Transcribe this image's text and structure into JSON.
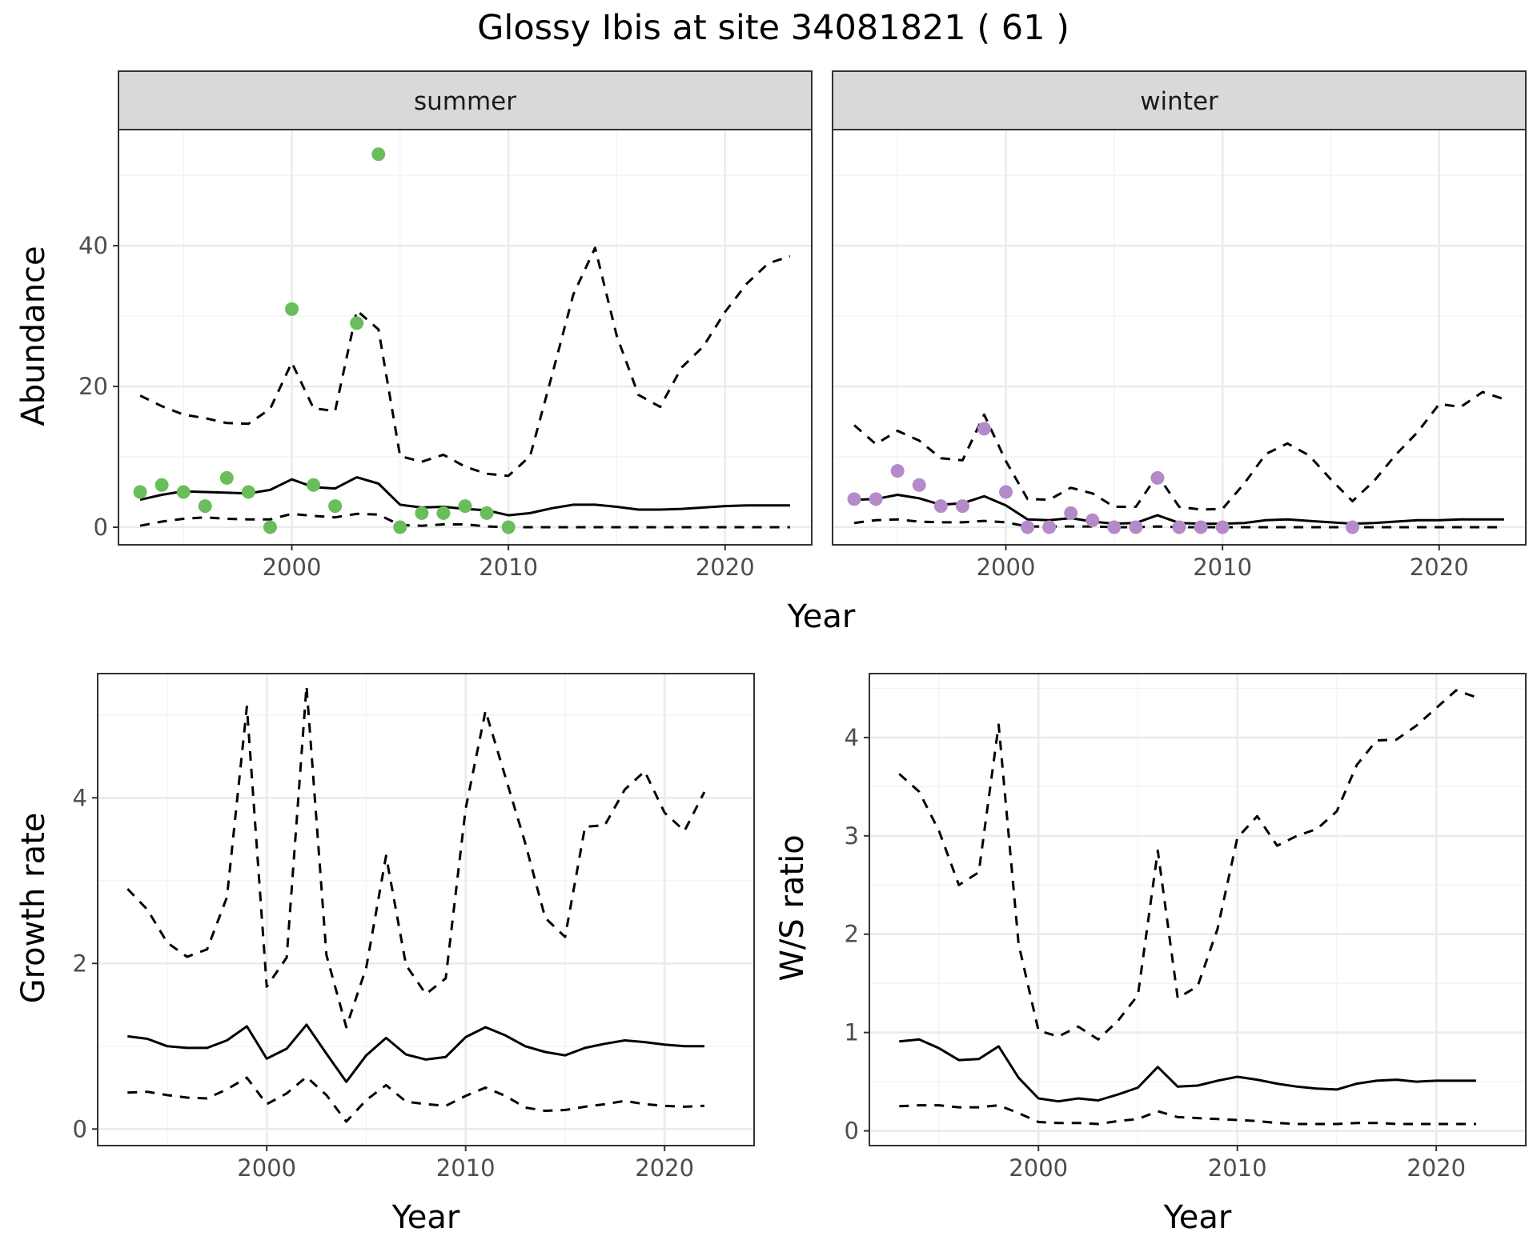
{
  "title": "Glossy Ibis at site 34081821 ( 61 )",
  "colors": {
    "summer_points": "#6abd5b",
    "winter_points": "#b48ac9",
    "lines": "#000000",
    "strip_bg": "#d9d9d9",
    "grid": "#ebebeb"
  },
  "chart_data": [
    {
      "type": "line",
      "panel": "summer",
      "strip_label": "summer",
      "xlabel": "Year",
      "ylabel": "Abundance",
      "xlim": [
        1992,
        2024
      ],
      "ylim": [
        -2.5,
        56.5
      ],
      "x_ticks": [
        2000,
        2010,
        2020
      ],
      "y_ticks": [
        0,
        20,
        40
      ],
      "grid": true,
      "series": [
        {
          "role": "estimate",
          "style": "solid",
          "x": [
            1993,
            1994,
            1995,
            1996,
            1997,
            1998,
            1999,
            2000,
            2001,
            2002,
            2003,
            2004,
            2005,
            2006,
            2007,
            2008,
            2009,
            2010,
            2011,
            2012,
            2013,
            2014,
            2015,
            2016,
            2017,
            2018,
            2019,
            2020,
            2021,
            2022,
            2023
          ],
          "y": [
            3.9,
            4.6,
            5.1,
            5.0,
            4.9,
            4.8,
            5.3,
            6.8,
            5.7,
            5.5,
            7.1,
            6.2,
            3.2,
            2.8,
            2.9,
            2.6,
            2.4,
            1.7,
            2.0,
            2.7,
            3.2,
            3.2,
            2.9,
            2.5,
            2.5,
            2.6,
            2.8,
            3.0,
            3.1,
            3.1,
            3.1
          ]
        },
        {
          "role": "upper",
          "style": "dashed",
          "x": [
            1993,
            1994,
            1995,
            1996,
            1997,
            1998,
            1999,
            2000,
            2001,
            2002,
            2003,
            2004,
            2005,
            2006,
            2007,
            2008,
            2009,
            2010,
            2011,
            2012,
            2013,
            2014,
            2015,
            2016,
            2017,
            2018,
            2019,
            2020,
            2021,
            2022,
            2023
          ],
          "y": [
            18.7,
            17.2,
            16.0,
            15.5,
            14.8,
            14.7,
            16.8,
            23.4,
            16.9,
            16.5,
            30.8,
            28.1,
            10.1,
            9.3,
            10.3,
            8.6,
            7.6,
            7.3,
            10.1,
            21.5,
            33.1,
            39.7,
            27.2,
            18.8,
            17.1,
            22.7,
            25.7,
            30.6,
            34.6,
            37.5,
            38.5
          ]
        },
        {
          "role": "lower",
          "style": "dashed",
          "x": [
            1993,
            1994,
            1995,
            1996,
            1997,
            1998,
            1999,
            2000,
            2001,
            2002,
            2003,
            2004,
            2005,
            2006,
            2007,
            2008,
            2009,
            2010,
            2011,
            2012,
            2013,
            2014,
            2015,
            2016,
            2017,
            2018,
            2019,
            2020,
            2021,
            2022,
            2023
          ],
          "y": [
            0.2,
            0.8,
            1.2,
            1.4,
            1.2,
            1.1,
            1.1,
            1.9,
            1.6,
            1.4,
            1.9,
            1.8,
            0.3,
            0.2,
            0.4,
            0.4,
            0.1,
            0.0,
            0.0,
            0.0,
            0.0,
            0.0,
            0.0,
            0.0,
            0.0,
            0.0,
            0.0,
            0.0,
            0.0,
            0.0,
            0.0
          ]
        }
      ],
      "points": {
        "x": [
          1993,
          1994,
          1995,
          1996,
          1997,
          1998,
          1999,
          2000,
          2001,
          2002,
          2003,
          2004,
          2005,
          2006,
          2007,
          2008,
          2009,
          2010
        ],
        "y": [
          5,
          6,
          5,
          3,
          7,
          5,
          0,
          31,
          6,
          3,
          29,
          53,
          0,
          2,
          2,
          3,
          2,
          0
        ]
      }
    },
    {
      "type": "line",
      "panel": "winter",
      "strip_label": "winter",
      "xlabel": "Year",
      "ylabel": "Abundance",
      "xlim": [
        1992,
        2024
      ],
      "ylim": [
        -2.5,
        56.5
      ],
      "x_ticks": [
        2000,
        2010,
        2020
      ],
      "y_ticks": [
        0,
        20,
        40
      ],
      "grid": true,
      "series": [
        {
          "role": "estimate",
          "style": "solid",
          "x": [
            1993,
            1994,
            1995,
            1996,
            1997,
            1998,
            1999,
            2000,
            2001,
            2002,
            2003,
            2004,
            2005,
            2006,
            2007,
            2008,
            2009,
            2010,
            2011,
            2012,
            2013,
            2014,
            2015,
            2016,
            2017,
            2018,
            2019,
            2020,
            2021,
            2022,
            2023
          ],
          "y": [
            3.9,
            4.0,
            4.6,
            4.1,
            3.2,
            3.4,
            4.4,
            3.1,
            1.1,
            1.0,
            1.3,
            0.8,
            0.5,
            0.6,
            1.7,
            0.6,
            0.5,
            0.5,
            0.6,
            1.0,
            1.1,
            0.9,
            0.7,
            0.5,
            0.6,
            0.8,
            1.0,
            1.0,
            1.1,
            1.1,
            1.1
          ]
        },
        {
          "role": "upper",
          "style": "dashed",
          "x": [
            1993,
            1994,
            1995,
            1996,
            1997,
            1998,
            1999,
            2000,
            2001,
            2002,
            2003,
            2004,
            2005,
            2006,
            2007,
            2008,
            2009,
            2010,
            2011,
            2012,
            2013,
            2014,
            2015,
            2016,
            2017,
            2018,
            2019,
            2020,
            2021,
            2022,
            2023
          ],
          "y": [
            14.5,
            11.8,
            13.7,
            12.3,
            9.8,
            9.5,
            16.0,
            9.4,
            4.0,
            3.9,
            5.6,
            4.8,
            2.9,
            2.9,
            7.4,
            2.9,
            2.5,
            2.6,
            6.2,
            10.4,
            11.9,
            10.2,
            6.8,
            3.7,
            6.6,
            10.3,
            13.5,
            17.5,
            17.1,
            19.2,
            18.2
          ]
        },
        {
          "role": "lower",
          "style": "dashed",
          "x": [
            1993,
            1994,
            1995,
            1996,
            1997,
            1998,
            1999,
            2000,
            2001,
            2002,
            2003,
            2004,
            2005,
            2006,
            2007,
            2008,
            2009,
            2010,
            2011,
            2012,
            2013,
            2014,
            2015,
            2016,
            2017,
            2018,
            2019,
            2020,
            2021,
            2022,
            2023
          ],
          "y": [
            0.6,
            1.0,
            1.1,
            0.8,
            0.7,
            0.7,
            0.9,
            0.7,
            0.1,
            0.1,
            0.1,
            0.1,
            0.0,
            0.0,
            0.1,
            0.0,
            0.0,
            0.0,
            0.0,
            0.0,
            0.0,
            0.0,
            0.0,
            0.0,
            0.0,
            0.0,
            0.0,
            0.0,
            0.0,
            0.0,
            0.0
          ]
        }
      ],
      "points": {
        "x": [
          1993,
          1994,
          1995,
          1996,
          1997,
          1998,
          1999,
          2000,
          2001,
          2002,
          2003,
          2004,
          2005,
          2006,
          2007,
          2008,
          2009,
          2010,
          2016
        ],
        "y": [
          4,
          4,
          8,
          6,
          3,
          3,
          14,
          5,
          0,
          0,
          2,
          1,
          0,
          0,
          7,
          0,
          0,
          0,
          0
        ]
      }
    },
    {
      "type": "line",
      "panel": "growth",
      "xlabel": "Year",
      "ylabel": "Growth rate",
      "xlim": [
        1991.5,
        2024.5
      ],
      "ylim": [
        -0.2,
        5.5
      ],
      "x_ticks": [
        2000,
        2010,
        2020
      ],
      "y_ticks": [
        0,
        2,
        4
      ],
      "grid": true,
      "series": [
        {
          "role": "estimate",
          "style": "solid",
          "x": [
            1993,
            1994,
            1995,
            1996,
            1997,
            1998,
            1999,
            2000,
            2001,
            2002,
            2003,
            2004,
            2005,
            2006,
            2007,
            2008,
            2009,
            2010,
            2011,
            2012,
            2013,
            2014,
            2015,
            2016,
            2017,
            2018,
            2019,
            2020,
            2021,
            2022
          ],
          "y": [
            1.12,
            1.09,
            1.0,
            0.98,
            0.98,
            1.07,
            1.24,
            0.85,
            0.97,
            1.26,
            0.91,
            0.57,
            0.89,
            1.1,
            0.9,
            0.84,
            0.87,
            1.11,
            1.23,
            1.13,
            1.0,
            0.93,
            0.89,
            0.98,
            1.03,
            1.07,
            1.05,
            1.02,
            1.0,
            1.0
          ]
        },
        {
          "role": "upper",
          "style": "dashed",
          "x": [
            1993,
            1994,
            1995,
            1996,
            1997,
            1998,
            1999,
            2000,
            2001,
            2002,
            2003,
            2004,
            2005,
            2006,
            2007,
            2008,
            2009,
            2010,
            2011,
            2012,
            2013,
            2014,
            2015,
            2016,
            2017,
            2018,
            2019,
            2020,
            2021,
            2022
          ],
          "y": [
            2.9,
            2.65,
            2.25,
            2.08,
            2.17,
            2.8,
            5.1,
            1.72,
            2.07,
            5.35,
            2.1,
            1.23,
            1.95,
            3.3,
            1.98,
            1.63,
            1.82,
            3.87,
            5.05,
            4.25,
            3.45,
            2.55,
            2.32,
            3.65,
            3.67,
            4.1,
            4.32,
            3.82,
            3.6,
            4.07
          ]
        },
        {
          "role": "lower",
          "style": "dashed",
          "x": [
            1993,
            1994,
            1995,
            1996,
            1997,
            1998,
            1999,
            2000,
            2001,
            2002,
            2003,
            2004,
            2005,
            2006,
            2007,
            2008,
            2009,
            2010,
            2011,
            2012,
            2013,
            2014,
            2015,
            2016,
            2017,
            2018,
            2019,
            2020,
            2021,
            2022
          ],
          "y": [
            0.44,
            0.45,
            0.41,
            0.38,
            0.37,
            0.48,
            0.62,
            0.3,
            0.43,
            0.63,
            0.41,
            0.09,
            0.35,
            0.53,
            0.33,
            0.3,
            0.28,
            0.4,
            0.5,
            0.4,
            0.26,
            0.22,
            0.23,
            0.27,
            0.3,
            0.34,
            0.3,
            0.28,
            0.27,
            0.28
          ]
        }
      ]
    },
    {
      "type": "line",
      "panel": "ratio",
      "xlabel": "Year",
      "ylabel": "W/S ratio",
      "xlim": [
        1991.5,
        2024.5
      ],
      "ylim": [
        -0.15,
        4.65
      ],
      "x_ticks": [
        2000,
        2010,
        2020
      ],
      "y_ticks": [
        0,
        1,
        2,
        3,
        4
      ],
      "grid": true,
      "series": [
        {
          "role": "estimate",
          "style": "solid",
          "x": [
            1993,
            1994,
            1995,
            1996,
            1997,
            1998,
            1999,
            2000,
            2001,
            2002,
            2003,
            2004,
            2005,
            2006,
            2007,
            2008,
            2009,
            2010,
            2011,
            2012,
            2013,
            2014,
            2015,
            2016,
            2017,
            2018,
            2019,
            2020,
            2021,
            2022
          ],
          "y": [
            0.91,
            0.93,
            0.84,
            0.72,
            0.73,
            0.86,
            0.54,
            0.33,
            0.3,
            0.33,
            0.31,
            0.37,
            0.44,
            0.65,
            0.45,
            0.46,
            0.51,
            0.55,
            0.52,
            0.48,
            0.45,
            0.43,
            0.42,
            0.48,
            0.51,
            0.52,
            0.5,
            0.51,
            0.51,
            0.51
          ]
        },
        {
          "role": "upper",
          "style": "dashed",
          "x": [
            1993,
            1994,
            1995,
            1996,
            1997,
            1998,
            1999,
            2000,
            2001,
            2002,
            2003,
            2004,
            2005,
            2006,
            2007,
            2008,
            2009,
            2010,
            2011,
            2012,
            2013,
            2014,
            2015,
            2016,
            2017,
            2018,
            2019,
            2020,
            2021,
            2022
          ],
          "y": [
            3.63,
            3.45,
            3.05,
            2.5,
            2.63,
            4.13,
            1.9,
            1.02,
            0.96,
            1.06,
            0.93,
            1.12,
            1.38,
            2.85,
            1.35,
            1.47,
            2.05,
            2.98,
            3.2,
            2.9,
            3.0,
            3.07,
            3.25,
            3.72,
            3.97,
            3.98,
            4.12,
            4.3,
            4.48,
            4.41
          ]
        },
        {
          "role": "lower",
          "style": "dashed",
          "x": [
            1993,
            1994,
            1995,
            1996,
            1997,
            1998,
            1999,
            2000,
            2001,
            2002,
            2003,
            2004,
            2005,
            2006,
            2007,
            2008,
            2009,
            2010,
            2011,
            2012,
            2013,
            2014,
            2015,
            2016,
            2017,
            2018,
            2019,
            2020,
            2021,
            2022
          ],
          "y": [
            0.25,
            0.26,
            0.26,
            0.24,
            0.24,
            0.26,
            0.18,
            0.09,
            0.08,
            0.08,
            0.07,
            0.1,
            0.12,
            0.2,
            0.14,
            0.13,
            0.12,
            0.11,
            0.1,
            0.08,
            0.07,
            0.07,
            0.07,
            0.08,
            0.08,
            0.07,
            0.07,
            0.07,
            0.07,
            0.07
          ]
        }
      ]
    }
  ]
}
